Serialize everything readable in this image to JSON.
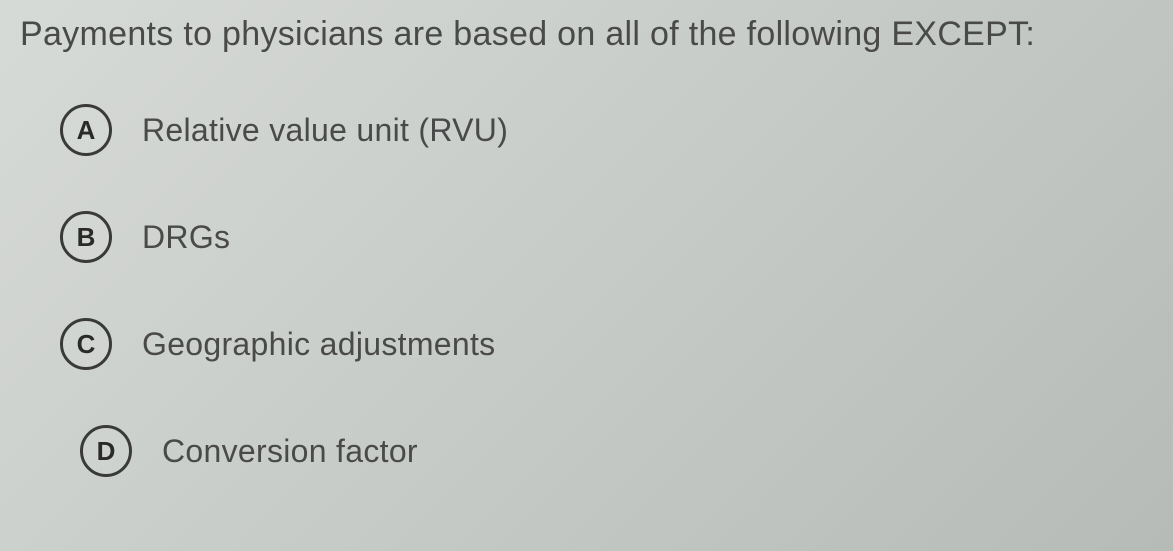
{
  "question": {
    "text": "Payments to physicians are based on all of the following EXCEPT:"
  },
  "options": [
    {
      "letter": "A",
      "label": "Relative value unit (RVU)"
    },
    {
      "letter": "B",
      "label": "DRGs"
    },
    {
      "letter": "C",
      "label": "Geographic adjustments"
    },
    {
      "letter": "D",
      "label": "Conversion factor"
    }
  ],
  "styling": {
    "background_gradient_start": "#d8dcd8",
    "background_gradient_end": "#b8bcb8",
    "text_color": "#4a4a4a",
    "circle_border_color": "#3a3a3a",
    "circle_text_color": "#2a2a2a",
    "question_fontsize": 34,
    "option_fontsize": 32,
    "circle_size": 52,
    "circle_border_width": 3
  }
}
